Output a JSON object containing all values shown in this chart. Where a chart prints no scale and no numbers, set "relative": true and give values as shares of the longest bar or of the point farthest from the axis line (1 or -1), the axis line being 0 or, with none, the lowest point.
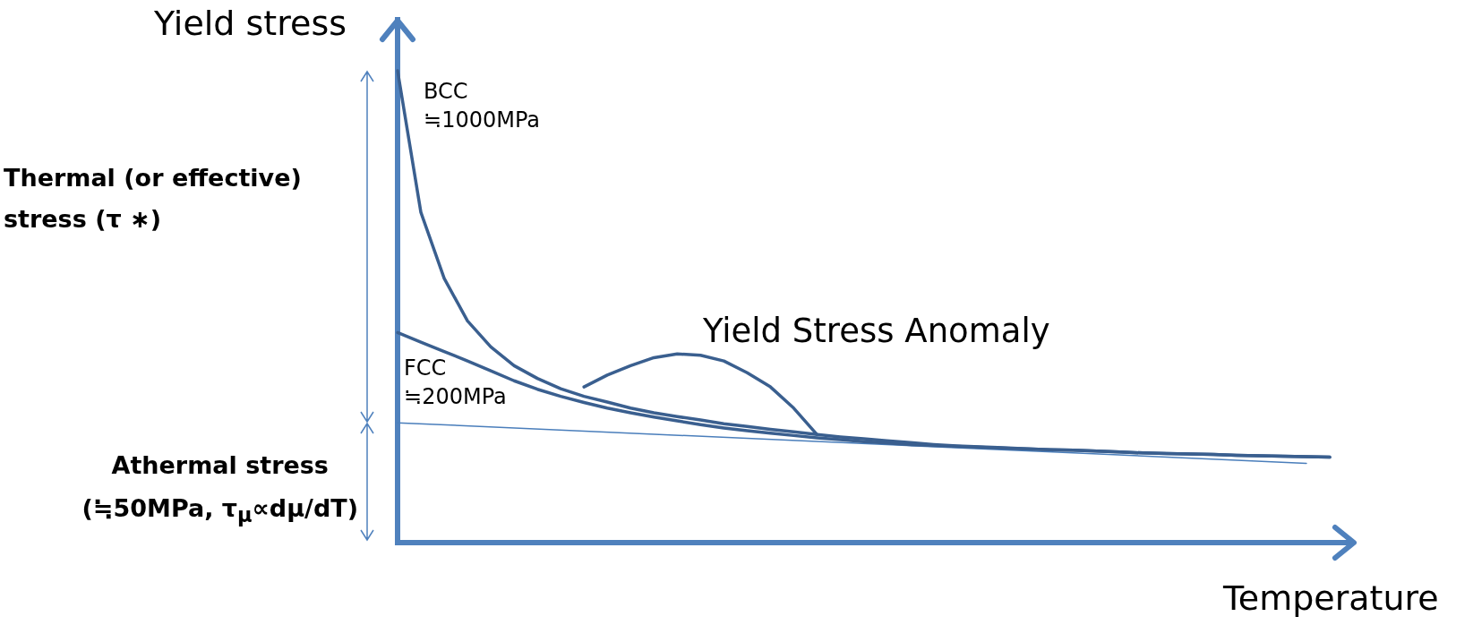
{
  "chart_data": {
    "type": "line",
    "relative": true,
    "ylabel": "Yield stress",
    "xlabel": "Temperature",
    "grid": false,
    "legend": false,
    "marker": "none",
    "line_style": "solid",
    "categories": [
      null,
      null,
      null,
      null,
      null,
      null,
      null,
      null,
      null,
      null,
      null,
      null,
      null,
      null,
      null,
      null,
      null,
      null,
      null,
      null,
      null,
      null,
      null,
      null,
      null,
      null,
      null,
      null,
      null,
      null,
      null,
      null,
      null,
      null,
      null,
      null,
      null,
      null,
      null,
      null,
      null,
      null
    ],
    "series": [
      {
        "color": "#3a5f8f",
        "values": [
          1.0,
          0.7,
          0.56,
          0.47,
          0.415,
          0.375,
          0.348,
          0.326,
          0.31,
          0.298,
          0.285,
          0.275,
          0.267,
          0.26,
          0.252,
          0.246,
          0.24,
          0.235,
          0.229,
          0.224,
          0.22,
          0.216,
          0.212,
          0.208,
          0.205,
          0.203,
          0.201,
          0.199,
          0.197,
          0.196,
          0.194,
          0.192,
          0.19,
          0.189,
          0.188,
          0.187,
          0.185,
          0.184,
          0.183,
          0.182,
          0.181,
          null
        ]
      },
      {
        "color": "#3a5f8f",
        "values": [
          0.445,
          0.425,
          0.405,
          0.385,
          0.364,
          0.343,
          0.325,
          0.31,
          0.297,
          0.285,
          0.275,
          0.266,
          0.258,
          0.25,
          0.243,
          0.237,
          0.232,
          0.227,
          0.222,
          0.218,
          0.214,
          0.211,
          0.208,
          0.206,
          0.204,
          0.202,
          0.2,
          0.199,
          0.197,
          0.196,
          0.194,
          0.192,
          0.19,
          0.189,
          0.188,
          0.187,
          0.185,
          0.184,
          0.183,
          0.182,
          0.181,
          null
        ]
      },
      {
        "color": "#3a5f8f",
        "values": [
          null,
          null,
          null,
          null,
          null,
          null,
          null,
          null,
          0.33,
          0.355,
          0.375,
          0.392,
          0.4,
          0.397,
          0.385,
          0.36,
          0.33,
          0.285,
          0.229,
          null,
          null,
          null,
          null,
          null,
          null,
          null,
          null,
          null,
          null,
          null,
          null,
          null,
          null,
          null,
          null,
          null,
          null,
          null,
          null,
          null,
          null,
          null
        ]
      },
      {
        "color": "#4a7ebb",
        "values": [
          0.254,
          null,
          null,
          null,
          null,
          null,
          null,
          null,
          null,
          null,
          null,
          null,
          null,
          null,
          null,
          null,
          null,
          null,
          null,
          null,
          null,
          null,
          null,
          null,
          null,
          null,
          null,
          null,
          null,
          null,
          null,
          null,
          null,
          null,
          null,
          null,
          null,
          null,
          null,
          0.168,
          null,
          null
        ]
      }
    ],
    "annotations": [
      "BCC\n≒1000MPa",
      "FCC\n≒200MPa",
      "Yield Stress Anomaly",
      "Thermal (or effective)\nstress (τ ∗)",
      "Athermal stress\n(≒50MPa, τ$_{μ}$∝dμ/dT)"
    ]
  }
}
